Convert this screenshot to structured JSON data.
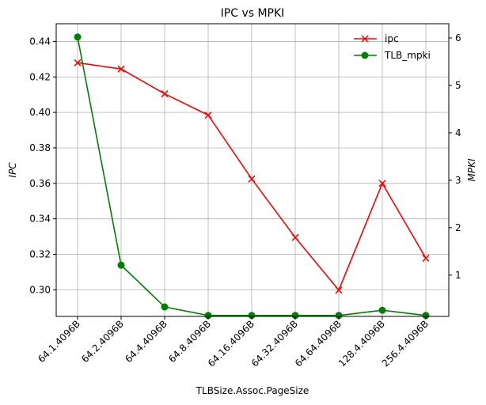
{
  "chart_data": {
    "type": "line",
    "title": "IPC vs MPKI",
    "xlabel": "TLBSize.Assoc.PageSize",
    "ylabel_left": "IPC",
    "ylabel_right": "MPKI",
    "categories": [
      "64.1.4096B",
      "64.2.4096B",
      "64.4.4096B",
      "64.8.4096B",
      "64.16.4096B",
      "64.32.4096B",
      "64.64.4096B",
      "128.4.4096B",
      "256.4.4096B"
    ],
    "y_left_range": [
      0.285,
      0.45
    ],
    "y_right_range": [
      0.13,
      6.3
    ],
    "y_left_ticks": [
      "0.30",
      "0.32",
      "0.34",
      "0.36",
      "0.38",
      "0.40",
      "0.42",
      "0.44"
    ],
    "y_right_ticks": [
      "1",
      "2",
      "3",
      "4",
      "5",
      "6"
    ],
    "grid": true,
    "legend_position": "top-right",
    "series": [
      {
        "name": "ipc",
        "axis": "left",
        "color": "#ff0000",
        "marker": "x",
        "values": [
          0.428,
          0.4245,
          0.4105,
          0.3985,
          0.3625,
          0.3295,
          0.2998,
          0.36,
          0.3178
        ]
      },
      {
        "name": "TLB_mpki",
        "axis": "right",
        "color": "#008000",
        "marker": "o",
        "values": [
          6.02,
          1.21,
          0.33,
          0.15,
          0.15,
          0.15,
          0.15,
          0.26,
          0.15
        ]
      }
    ]
  }
}
